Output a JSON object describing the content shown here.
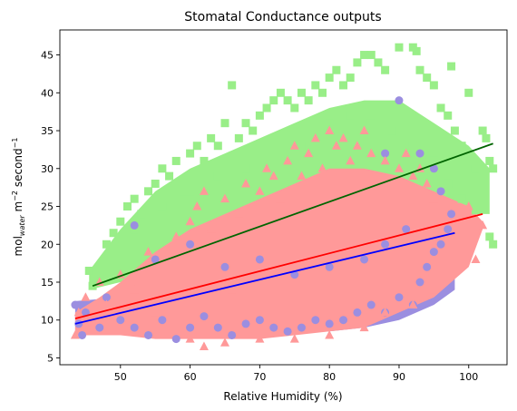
{
  "chart_data": {
    "type": "scatter",
    "title": "Stomatal Conductance outputs",
    "xlabel": "Relative Humidity (%)",
    "ylabel": {
      "base": "mol",
      "sub": "water",
      "unit": " m",
      "sup1": "−2",
      "unit2": " second",
      "sup2": "−1"
    },
    "xlim": [
      41.3,
      105.5
    ],
    "ylim": [
      4.1,
      48.3
    ],
    "x_ticks": [
      50,
      60,
      70,
      80,
      90,
      100
    ],
    "y_ticks": [
      5,
      10,
      15,
      20,
      25,
      30,
      35,
      40,
      45
    ],
    "grid": false,
    "legend": "none",
    "series": [
      {
        "color": "#9b8ee0",
        "marker": "circle",
        "x_range": [
          43,
          98
        ],
        "fit": {
          "x": [
            43.5,
            98
          ],
          "y": [
            9.5,
            21.5
          ],
          "color": "#0000ff"
        }
      },
      {
        "color": "#ff9999",
        "marker": "triangle",
        "x_range": [
          43,
          102
        ],
        "fit": {
          "x": [
            43.5,
            102
          ],
          "y": [
            10.2,
            24.0
          ],
          "color": "#ff0000"
        }
      },
      {
        "color": "#99ee88",
        "marker": "square",
        "x_range": [
          45.5,
          103.5
        ],
        "fit": {
          "x": [
            46,
            103.5
          ],
          "y": [
            14.5,
            33.3
          ],
          "color": "#006400"
        }
      }
    ],
    "sample_points": [
      {
        "series": 0,
        "points": [
          [
            43.5,
            12
          ],
          [
            44,
            9.5
          ],
          [
            44.5,
            8
          ],
          [
            45,
            11
          ],
          [
            47,
            9
          ],
          [
            48,
            13
          ],
          [
            50,
            10
          ],
          [
            52,
            9
          ],
          [
            54,
            8
          ],
          [
            56,
            10
          ],
          [
            58,
            7.5
          ],
          [
            60,
            9
          ],
          [
            62,
            10.5
          ],
          [
            64,
            9
          ],
          [
            66,
            8
          ],
          [
            68,
            9.5
          ],
          [
            70,
            10
          ],
          [
            72,
            9
          ],
          [
            74,
            8.5
          ],
          [
            76,
            9
          ],
          [
            78,
            10
          ],
          [
            80,
            9.5
          ],
          [
            82,
            10
          ],
          [
            84,
            11
          ],
          [
            86,
            12
          ],
          [
            88,
            11
          ],
          [
            90,
            13
          ],
          [
            92,
            12
          ],
          [
            93,
            15
          ],
          [
            94,
            17
          ],
          [
            95,
            19
          ],
          [
            96,
            20
          ],
          [
            97,
            22
          ],
          [
            97.5,
            24
          ],
          [
            96,
            27
          ],
          [
            95,
            30
          ],
          [
            93,
            32
          ],
          [
            90,
            39
          ],
          [
            88,
            32
          ],
          [
            52,
            22.5
          ],
          [
            55,
            18
          ],
          [
            60,
            20
          ],
          [
            65,
            17
          ],
          [
            70,
            18
          ],
          [
            75,
            16
          ],
          [
            80,
            17
          ],
          [
            85,
            18
          ],
          [
            88,
            20
          ],
          [
            91,
            22
          ]
        ]
      },
      {
        "series": 1,
        "points": [
          [
            43.5,
            8
          ],
          [
            44,
            11
          ],
          [
            45,
            13
          ],
          [
            46,
            10
          ],
          [
            47,
            15
          ],
          [
            48,
            12
          ],
          [
            50,
            16
          ],
          [
            52,
            14
          ],
          [
            54,
            19
          ],
          [
            55,
            11
          ],
          [
            56,
            18
          ],
          [
            58,
            21
          ],
          [
            60,
            23
          ],
          [
            61,
            25
          ],
          [
            62,
            27
          ],
          [
            63,
            22
          ],
          [
            64,
            20
          ],
          [
            65,
            26
          ],
          [
            66,
            18
          ],
          [
            67,
            24
          ],
          [
            68,
            28
          ],
          [
            70,
            27
          ],
          [
            71,
            30
          ],
          [
            72,
            29
          ],
          [
            73,
            26
          ],
          [
            74,
            31
          ],
          [
            75,
            33
          ],
          [
            76,
            29
          ],
          [
            77,
            32
          ],
          [
            78,
            34
          ],
          [
            79,
            30
          ],
          [
            80,
            35
          ],
          [
            81,
            33
          ],
          [
            82,
            34
          ],
          [
            83,
            31
          ],
          [
            84,
            33
          ],
          [
            85,
            35
          ],
          [
            86,
            32
          ],
          [
            88,
            31
          ],
          [
            90,
            30
          ],
          [
            91,
            32
          ],
          [
            92,
            29
          ],
          [
            93,
            30
          ],
          [
            94,
            28
          ],
          [
            95,
            26
          ],
          [
            97,
            23
          ],
          [
            100,
            25
          ],
          [
            102,
            22.5
          ],
          [
            101,
            18
          ],
          [
            98,
            17
          ],
          [
            95,
            14
          ],
          [
            92,
            12
          ],
          [
            88,
            11
          ],
          [
            85,
            9
          ],
          [
            80,
            8
          ],
          [
            75,
            7.5
          ],
          [
            70,
            7.5
          ],
          [
            65,
            7
          ],
          [
            60,
            7.5
          ],
          [
            56,
            8
          ],
          [
            50,
            8.5
          ],
          [
            62,
            6.5
          ],
          [
            72,
            12
          ],
          [
            80,
            13
          ],
          [
            86,
            20
          ],
          [
            90,
            22
          ],
          [
            66,
            14
          ],
          [
            58,
            12
          ]
        ]
      },
      {
        "series": 2,
        "points": [
          [
            45.5,
            16.5
          ],
          [
            46,
            14.5
          ],
          [
            49,
            21.5
          ],
          [
            50,
            23
          ],
          [
            51,
            25
          ],
          [
            52,
            26
          ],
          [
            53,
            24
          ],
          [
            54,
            27
          ],
          [
            55,
            28
          ],
          [
            56,
            30
          ],
          [
            57,
            29
          ],
          [
            58,
            31
          ],
          [
            59,
            27
          ],
          [
            60,
            32
          ],
          [
            61,
            33
          ],
          [
            62,
            31
          ],
          [
            63,
            34
          ],
          [
            64,
            33
          ],
          [
            65,
            36
          ],
          [
            66,
            41
          ],
          [
            67,
            34
          ],
          [
            68,
            36
          ],
          [
            69,
            35
          ],
          [
            70,
            37
          ],
          [
            71,
            38
          ],
          [
            72,
            39
          ],
          [
            73,
            40
          ],
          [
            74,
            39
          ],
          [
            75,
            38
          ],
          [
            76,
            40
          ],
          [
            77,
            39
          ],
          [
            78,
            41
          ],
          [
            79,
            40
          ],
          [
            80,
            42
          ],
          [
            81,
            43
          ],
          [
            82,
            41
          ],
          [
            83,
            42
          ],
          [
            84,
            44
          ],
          [
            85,
            45
          ],
          [
            86,
            45
          ],
          [
            87,
            44
          ],
          [
            88,
            43
          ],
          [
            90,
            46
          ],
          [
            92,
            46
          ],
          [
            92.5,
            45.5
          ],
          [
            93,
            43
          ],
          [
            94,
            42
          ],
          [
            95,
            41
          ],
          [
            96,
            38
          ],
          [
            97,
            37
          ],
          [
            97.5,
            43.5
          ],
          [
            98,
            35
          ],
          [
            99,
            33
          ],
          [
            100,
            40
          ],
          [
            101,
            30
          ],
          [
            102,
            35
          ],
          [
            102.5,
            34
          ],
          [
            103,
            31
          ],
          [
            103.5,
            30
          ],
          [
            103,
            21
          ],
          [
            103.5,
            20
          ],
          [
            101,
            24.5
          ],
          [
            99,
            26
          ],
          [
            97,
            28
          ],
          [
            95,
            31
          ],
          [
            92,
            33
          ],
          [
            89,
            35
          ],
          [
            86,
            36
          ],
          [
            83,
            37
          ],
          [
            80,
            36
          ],
          [
            76,
            33
          ],
          [
            72,
            32
          ],
          [
            68,
            30
          ],
          [
            64,
            29
          ],
          [
            60,
            27
          ],
          [
            56,
            25
          ],
          [
            52,
            22
          ],
          [
            48,
            20
          ]
        ]
      }
    ]
  }
}
